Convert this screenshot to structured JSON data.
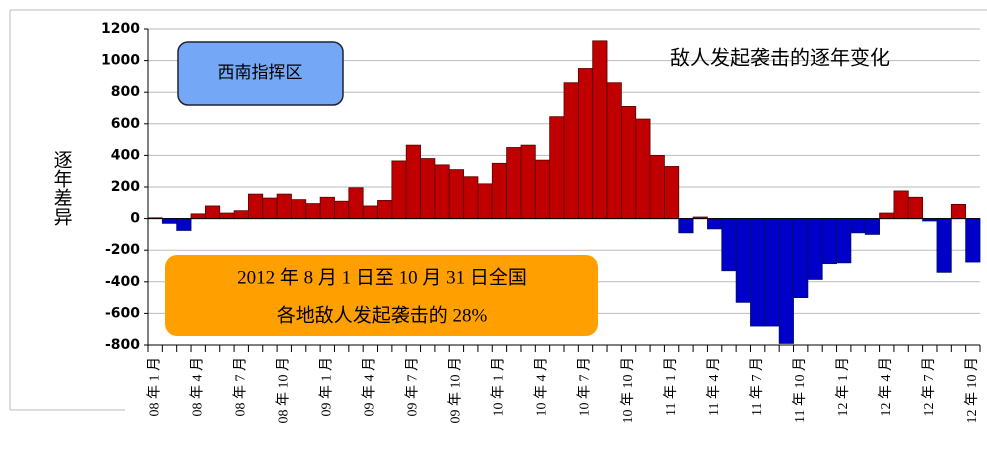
{
  "chart_data": {
    "type": "bar",
    "title": "敌人发起袭击的逐年变化",
    "y_label": "逐年差异",
    "region_label": "西南指挥区",
    "annotation": [
      "2012 年 8 月 1 日至 10 月 31 日全国",
      "各地敌人发起袭击的 28%"
    ],
    "categories": [
      "08 年 1 月",
      null,
      null,
      "08 年 4 月",
      null,
      null,
      "08 年 7 月",
      null,
      null,
      "08 年 10 月",
      null,
      null,
      "09 年 1 月",
      null,
      null,
      "09 年 4 月",
      null,
      null,
      "09 年 7 月",
      null,
      null,
      "09 年 10 月",
      null,
      null,
      "10 年 1 月",
      null,
      null,
      "10 年 4 月",
      null,
      null,
      "10 年 7 月",
      null,
      null,
      "10 年 10 月",
      null,
      null,
      "11 年 1 月",
      null,
      null,
      "11 年 4 月",
      null,
      null,
      "11 年 7 月",
      null,
      null,
      "11 年 10 月",
      null,
      null,
      "12 年 1 月",
      null,
      null,
      "12 年 4 月",
      null,
      null,
      "12 年 7 月",
      null,
      null,
      "12 年 10 月"
    ],
    "values": [
      5,
      -30,
      -75,
      30,
      80,
      35,
      50,
      155,
      130,
      155,
      120,
      95,
      135,
      110,
      195,
      80,
      115,
      365,
      465,
      380,
      340,
      310,
      265,
      220,
      350,
      450,
      465,
      370,
      645,
      860,
      950,
      1125,
      860,
      710,
      630,
      400,
      330,
      -90,
      10,
      -65,
      -330,
      -530,
      -680,
      -680,
      -790,
      -500,
      -385,
      -285,
      -280,
      -90,
      -100,
      35,
      175,
      135,
      -15,
      -340,
      90,
      -275
    ],
    "positive_color": "#c00000",
    "negative_color": "#0000c8",
    "ylim": [
      -800,
      1200
    ],
    "yticks": [
      -800,
      -600,
      -400,
      -200,
      0,
      200,
      400,
      600,
      800,
      1000,
      1200
    ],
    "grid": true
  }
}
